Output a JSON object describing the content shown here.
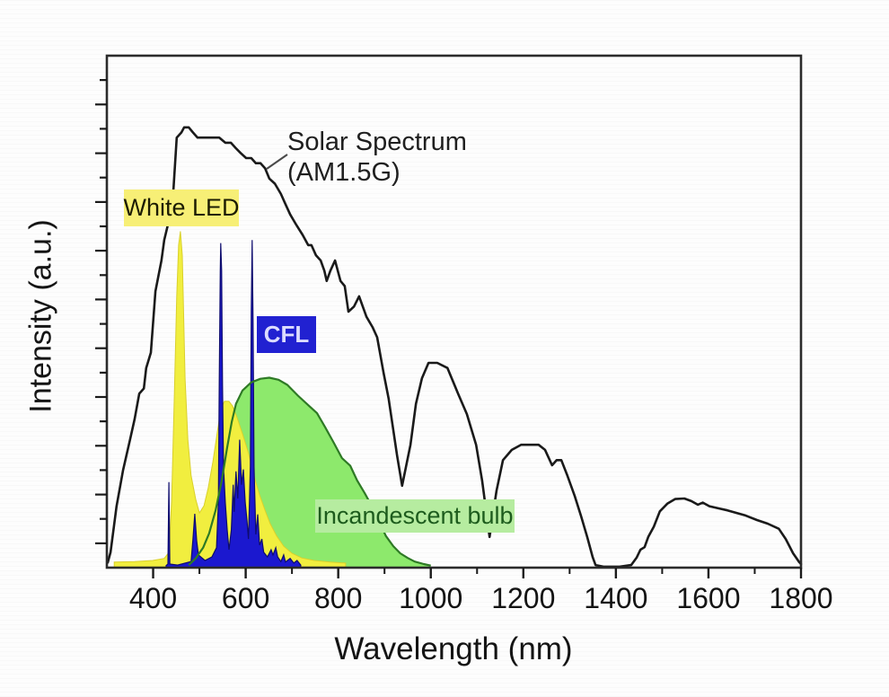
{
  "chart_data": {
    "type": "area",
    "title": "",
    "xlabel": "Wavelength (nm)",
    "ylabel": "Intensity (a.u.)",
    "x_range": [
      300,
      1800
    ],
    "y_range": [
      0,
      1
    ],
    "grid": false,
    "x_ticks_major": [
      400,
      600,
      800,
      1000,
      1200,
      1400,
      1600,
      1800
    ],
    "x_ticks_minor": [
      500,
      700,
      900,
      1100,
      1300,
      1500,
      1700
    ],
    "annotations": {
      "solar_line1": "Solar Spectrum",
      "solar_line2": "(AM1.5G)",
      "white_led": "White LED",
      "cfl": "CFL",
      "incandescent": "Incandescent bulb"
    },
    "colors": {
      "solar_line": "#1a1a1a",
      "led_fill": "#f1ee3f",
      "led_edge": "#d9d02c",
      "cfl_fill": "#1b18cf",
      "cfl_edge": "#0e0c6e",
      "inc_fill": "#8de96c",
      "inc_edge": "#2e7a25",
      "led_label_bg": "#f7ef76",
      "cfl_label_bg": "#2121d1",
      "inc_label_bg": "#b6eca0"
    },
    "series": [
      {
        "name": "Incandescent bulb",
        "kind": "filled-area",
        "points": [
          [
            477,
            0.005
          ],
          [
            492,
            0.018
          ],
          [
            508,
            0.039
          ],
          [
            521,
            0.067
          ],
          [
            535,
            0.112
          ],
          [
            548,
            0.169
          ],
          [
            560,
            0.235
          ],
          [
            570,
            0.285
          ],
          [
            579,
            0.32
          ],
          [
            593,
            0.346
          ],
          [
            612,
            0.362
          ],
          [
            632,
            0.369
          ],
          [
            651,
            0.371
          ],
          [
            671,
            0.367
          ],
          [
            690,
            0.357
          ],
          [
            713,
            0.336
          ],
          [
            737,
            0.316
          ],
          [
            754,
            0.302
          ],
          [
            772,
            0.274
          ],
          [
            791,
            0.243
          ],
          [
            808,
            0.214
          ],
          [
            826,
            0.199
          ],
          [
            841,
            0.17
          ],
          [
            857,
            0.146
          ],
          [
            872,
            0.121
          ],
          [
            888,
            0.091
          ],
          [
            903,
            0.062
          ],
          [
            919,
            0.042
          ],
          [
            934,
            0.028
          ],
          [
            950,
            0.019
          ],
          [
            965,
            0.012
          ],
          [
            985,
            0.007
          ],
          [
            1000,
            0.004
          ]
        ]
      },
      {
        "name": "White LED",
        "kind": "filled-area",
        "points": [
          [
            316,
            0.011
          ],
          [
            360,
            0.012
          ],
          [
            399,
            0.014
          ],
          [
            424,
            0.018
          ],
          [
            434,
            0.03
          ],
          [
            440,
            0.13
          ],
          [
            446,
            0.34
          ],
          [
            451,
            0.53
          ],
          [
            455,
            0.63
          ],
          [
            459,
            0.657
          ],
          [
            463,
            0.61
          ],
          [
            469,
            0.37
          ],
          [
            475,
            0.25
          ],
          [
            482,
            0.18
          ],
          [
            492,
            0.134
          ],
          [
            500,
            0.107
          ],
          [
            510,
            0.121
          ],
          [
            519,
            0.156
          ],
          [
            529,
            0.206
          ],
          [
            539,
            0.267
          ],
          [
            546,
            0.308
          ],
          [
            554,
            0.325
          ],
          [
            564,
            0.325
          ],
          [
            572,
            0.315
          ],
          [
            581,
            0.294
          ],
          [
            593,
            0.262
          ],
          [
            605,
            0.227
          ],
          [
            618,
            0.179
          ],
          [
            630,
            0.142
          ],
          [
            642,
            0.112
          ],
          [
            653,
            0.086
          ],
          [
            667,
            0.062
          ],
          [
            682,
            0.042
          ],
          [
            700,
            0.028
          ],
          [
            721,
            0.019
          ],
          [
            748,
            0.014
          ],
          [
            783,
            0.011
          ],
          [
            816,
            0.009
          ]
        ]
      },
      {
        "name": "CFL",
        "kind": "filled-area",
        "points": [
          [
            428,
            0.004
          ],
          [
            432,
            0.007
          ],
          [
            434,
            0.167
          ],
          [
            436,
            0.007
          ],
          [
            453,
            0.005
          ],
          [
            482,
            0.012
          ],
          [
            486,
            0.056
          ],
          [
            490,
            0.105
          ],
          [
            494,
            0.053
          ],
          [
            498,
            0.025
          ],
          [
            512,
            0.014
          ],
          [
            527,
            0.021
          ],
          [
            537,
            0.039
          ],
          [
            541,
            0.127
          ],
          [
            543,
            0.37
          ],
          [
            545,
            0.58
          ],
          [
            546,
            0.634
          ],
          [
            548,
            0.58
          ],
          [
            550,
            0.355
          ],
          [
            552,
            0.197
          ],
          [
            556,
            0.127
          ],
          [
            560,
            0.074
          ],
          [
            564,
            0.035
          ],
          [
            569,
            0.074
          ],
          [
            573,
            0.162
          ],
          [
            575,
            0.109
          ],
          [
            579,
            0.188
          ],
          [
            583,
            0.135
          ],
          [
            587,
            0.25
          ],
          [
            591,
            0.162
          ],
          [
            595,
            0.192
          ],
          [
            599,
            0.127
          ],
          [
            603,
            0.091
          ],
          [
            606,
            0.056
          ],
          [
            610,
            0.197
          ],
          [
            612,
            0.5
          ],
          [
            614,
            0.64
          ],
          [
            616,
            0.48
          ],
          [
            618,
            0.197
          ],
          [
            622,
            0.065
          ],
          [
            626,
            0.104
          ],
          [
            630,
            0.044
          ],
          [
            635,
            0.056
          ],
          [
            639,
            0.03
          ],
          [
            647,
            0.021
          ],
          [
            655,
            0.035
          ],
          [
            659,
            0.025
          ],
          [
            665,
            0.039
          ],
          [
            669,
            0.021
          ],
          [
            676,
            0.012
          ],
          [
            682,
            0.025
          ],
          [
            686,
            0.011
          ],
          [
            696,
            0.018
          ],
          [
            704,
            0.009
          ],
          [
            711,
            0.014
          ],
          [
            719,
            0.005
          ]
        ]
      },
      {
        "name": "Solar Spectrum (AM1.5G)",
        "kind": "line",
        "points": [
          [
            302,
            0.01
          ],
          [
            308,
            0.03
          ],
          [
            321,
            0.12
          ],
          [
            335,
            0.19
          ],
          [
            350,
            0.25
          ],
          [
            360,
            0.29
          ],
          [
            366,
            0.32
          ],
          [
            370,
            0.34
          ],
          [
            380,
            0.35
          ],
          [
            385,
            0.39
          ],
          [
            395,
            0.42
          ],
          [
            405,
            0.54
          ],
          [
            418,
            0.6
          ],
          [
            424,
            0.64
          ],
          [
            432,
            0.67
          ],
          [
            444,
            0.74
          ],
          [
            451,
            0.84
          ],
          [
            461,
            0.85
          ],
          [
            467,
            0.86
          ],
          [
            477,
            0.86
          ],
          [
            486,
            0.85
          ],
          [
            496,
            0.84
          ],
          [
            506,
            0.84
          ],
          [
            515,
            0.84
          ],
          [
            529,
            0.84
          ],
          [
            543,
            0.84
          ],
          [
            556,
            0.83
          ],
          [
            568,
            0.83
          ],
          [
            578,
            0.82
          ],
          [
            589,
            0.81
          ],
          [
            601,
            0.8
          ],
          [
            612,
            0.8
          ],
          [
            622,
            0.79
          ],
          [
            632,
            0.79
          ],
          [
            642,
            0.78
          ],
          [
            651,
            0.76
          ],
          [
            663,
            0.75
          ],
          [
            676,
            0.73
          ],
          [
            686,
            0.71
          ],
          [
            696,
            0.69
          ],
          [
            709,
            0.67
          ],
          [
            723,
            0.65
          ],
          [
            735,
            0.63
          ],
          [
            742,
            0.63
          ],
          [
            752,
            0.61
          ],
          [
            762,
            0.6
          ],
          [
            770,
            0.58
          ],
          [
            775,
            0.56
          ],
          [
            783,
            0.58
          ],
          [
            793,
            0.6
          ],
          [
            805,
            0.56
          ],
          [
            814,
            0.55
          ],
          [
            822,
            0.5
          ],
          [
            834,
            0.51
          ],
          [
            845,
            0.53
          ],
          [
            861,
            0.49
          ],
          [
            874,
            0.47
          ],
          [
            884,
            0.45
          ],
          [
            898,
            0.38
          ],
          [
            909,
            0.33
          ],
          [
            927,
            0.22
          ],
          [
            938,
            0.16
          ],
          [
            956,
            0.24
          ],
          [
            968,
            0.32
          ],
          [
            981,
            0.37
          ],
          [
            995,
            0.4
          ],
          [
            1014,
            0.4
          ],
          [
            1036,
            0.39
          ],
          [
            1059,
            0.34
          ],
          [
            1078,
            0.3
          ],
          [
            1098,
            0.24
          ],
          [
            1111,
            0.17
          ],
          [
            1127,
            0.06
          ],
          [
            1142,
            0.15
          ],
          [
            1156,
            0.21
          ],
          [
            1175,
            0.23
          ],
          [
            1195,
            0.24
          ],
          [
            1214,
            0.24
          ],
          [
            1233,
            0.24
          ],
          [
            1247,
            0.23
          ],
          [
            1262,
            0.2
          ],
          [
            1272,
            0.21
          ],
          [
            1282,
            0.21
          ],
          [
            1295,
            0.18
          ],
          [
            1311,
            0.14
          ],
          [
            1325,
            0.1
          ],
          [
            1338,
            0.06
          ],
          [
            1350,
            0.02
          ],
          [
            1356,
            0.005
          ],
          [
            1373,
            0.002
          ],
          [
            1408,
            0.002
          ],
          [
            1433,
            0.005
          ],
          [
            1445,
            0.02
          ],
          [
            1453,
            0.035
          ],
          [
            1462,
            0.04
          ],
          [
            1470,
            0.06
          ],
          [
            1482,
            0.08
          ],
          [
            1495,
            0.11
          ],
          [
            1511,
            0.125
          ],
          [
            1528,
            0.134
          ],
          [
            1548,
            0.135
          ],
          [
            1563,
            0.13
          ],
          [
            1577,
            0.123
          ],
          [
            1588,
            0.127
          ],
          [
            1602,
            0.12
          ],
          [
            1621,
            0.116
          ],
          [
            1641,
            0.112
          ],
          [
            1660,
            0.107
          ],
          [
            1680,
            0.102
          ],
          [
            1705,
            0.093
          ],
          [
            1728,
            0.086
          ],
          [
            1752,
            0.076
          ],
          [
            1767,
            0.056
          ],
          [
            1783,
            0.028
          ],
          [
            1796,
            0.011
          ],
          [
            1800,
            0.007
          ]
        ]
      }
    ]
  }
}
